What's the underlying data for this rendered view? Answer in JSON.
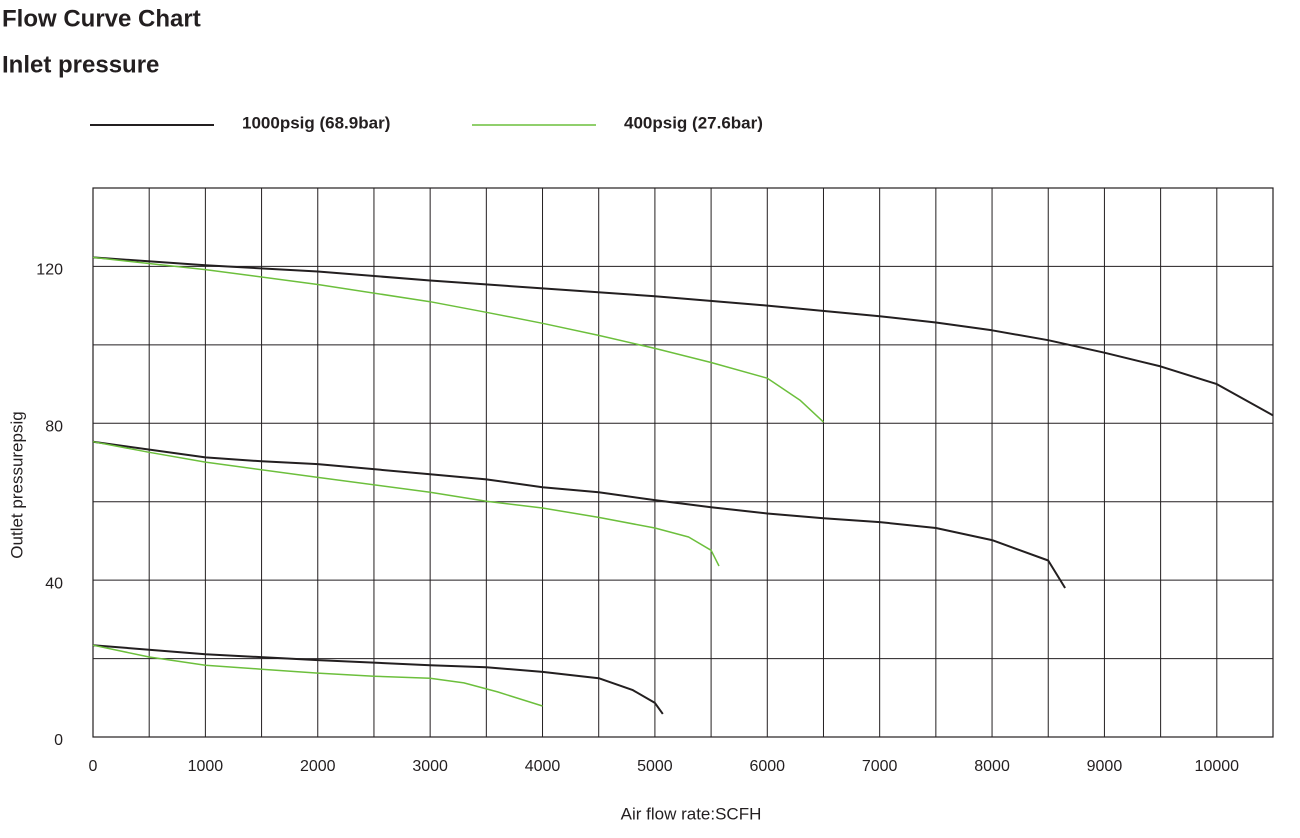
{
  "chart_data": {
    "type": "line",
    "title": "Flow Curve Chart",
    "subtitle": "Inlet pressure",
    "x_label": "Air flow rate:SCFH",
    "y_label": "Outlet pressurepsig",
    "xlim": [
      0,
      10500
    ],
    "ylim": [
      0,
      140
    ],
    "xticks": [
      0,
      1000,
      2000,
      3000,
      4000,
      5000,
      6000,
      7000,
      8000,
      9000,
      10000
    ],
    "yticks": [
      0,
      40,
      80,
      120
    ],
    "xgrid": [
      0,
      500,
      1000,
      1500,
      2000,
      2500,
      3000,
      3500,
      4000,
      4500,
      5000,
      5500,
      6000,
      6500,
      7000,
      7500,
      8000,
      8500,
      9000,
      9500,
      10000,
      10500
    ],
    "ygrid": [
      0,
      20,
      40,
      60,
      80,
      100,
      120,
      140
    ],
    "series": [
      {
        "name": "1000psig (68.9bar)",
        "color": "#231f20",
        "curves": [
          {
            "x": [
              0,
              1000,
              2000,
              3000,
              4000,
              5000,
              6000,
              7000,
              7500,
              8000,
              8500,
              9000,
              9500,
              10000,
              10500
            ],
            "y": [
              122.3,
              120.3,
              118.7,
              116.4,
              114.4,
              112.4,
              110,
              107.3,
              105.7,
              103.7,
              101.2,
              98,
              94.5,
              90,
              82
            ]
          },
          {
            "x": [
              0,
              1000,
              1500,
              2000,
              3000,
              3500,
              4000,
              4500,
              5000,
              5500,
              6000,
              6500,
              7000,
              7500,
              8000,
              8500,
              8650
            ],
            "y": [
              75.3,
              71.3,
              70.3,
              69.6,
              67,
              65.7,
              63.7,
              62.4,
              60.4,
              58.6,
              57,
              55.8,
              54.8,
              53.3,
              50.2,
              45,
              38
            ]
          },
          {
            "x": [
              0,
              1000,
              2000,
              3000,
              3500,
              4000,
              4500,
              4800,
              5000,
              5070
            ],
            "y": [
              23.4,
              21.1,
              19.6,
              18.3,
              17.8,
              16.6,
              15,
              12,
              8.7,
              5.9
            ]
          }
        ]
      },
      {
        "name": "400psig (27.6bar)",
        "color": "#6cbf3c",
        "curves": [
          {
            "x": [
              0,
              1000,
              2000,
              3000,
              3500,
              4000,
              4500,
              5000,
              5500,
              6000,
              6290,
              6500
            ],
            "y": [
              122.3,
              119.2,
              115.4,
              111,
              108.3,
              105.5,
              102.4,
              99.1,
              95.5,
              91.5,
              85.9,
              80.3
            ]
          },
          {
            "x": [
              0,
              500,
              1000,
              2000,
              3000,
              3500,
              4000,
              4500,
              5000,
              5300,
              5500,
              5570
            ],
            "y": [
              75.3,
              72.6,
              70.1,
              66.2,
              62.4,
              60.1,
              58.4,
              56,
              53.3,
              51,
              47.6,
              43.6
            ]
          },
          {
            "x": [
              0,
              500,
              1000,
              1500,
              2000,
              2500,
              3000,
              3300,
              3600,
              4000
            ],
            "y": [
              23.4,
              20.4,
              18.3,
              17.3,
              16.3,
              15.5,
              15,
              13.8,
              11.5,
              7.9
            ]
          }
        ]
      }
    ]
  }
}
